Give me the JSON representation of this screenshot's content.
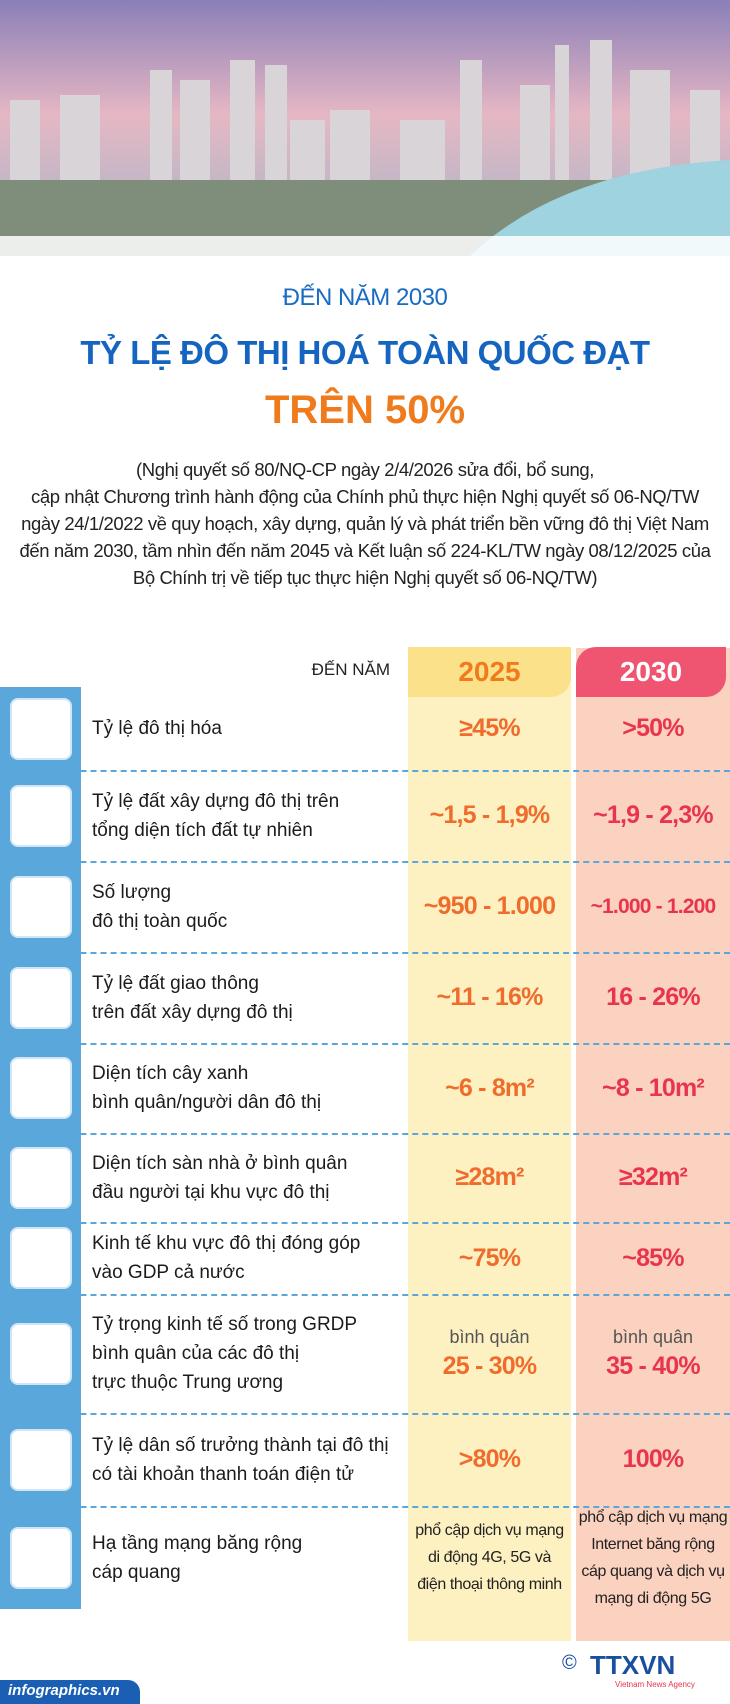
{
  "header": {
    "kicker": "ĐẾN NĂM 2030",
    "title": "TỶ LỆ ĐÔ THỊ HOÁ TOÀN QUỐC ĐẠT",
    "highlight": "TRÊN 50%",
    "note_lines": [
      "(Nghị quyết số 80/NQ-CP ngày 2/4/2026 sửa đổi, bổ sung,",
      "cập nhật Chương trình hành động của Chính phủ thực hiện Nghị quyết số 06-NQ/TW",
      "ngày 24/1/2022 về quy hoạch, xây dựng, quản lý và phát triển bền vững đô thị Việt Nam",
      "đến năm 2030, tầm nhìn đến năm 2045 và Kết luận số 224-KL/TW ngày 08/12/2025 của",
      "Bộ Chính trị về tiếp tục thực hiện Nghị quyết số 06-NQ/TW)"
    ]
  },
  "table": {
    "year_label": "ĐẾN NĂM",
    "columns": [
      "2025",
      "2030"
    ],
    "rows": [
      {
        "label": [
          "Tỷ lệ đô thị hóa"
        ],
        "values": [
          [
            "≥45%"
          ],
          [
            ">50%"
          ]
        ]
      },
      {
        "label": [
          "Tỷ lệ đất xây dựng đô thị trên",
          "tổng diện tích đất tự nhiên"
        ],
        "values": [
          [
            "~1,5 - 1,9%"
          ],
          [
            "~1,9 - 2,3%"
          ]
        ]
      },
      {
        "label": [
          "Số lượng",
          "đô thị toàn quốc"
        ],
        "values": [
          [
            "~950 - 1.000"
          ],
          [
            "~1.000 - 1.200"
          ]
        ]
      },
      {
        "label": [
          "Tỷ lệ đất giao thông",
          "trên đất xây dựng đô thị"
        ],
        "values": [
          [
            "~11 - 16%"
          ],
          [
            "16 - 26%"
          ]
        ]
      },
      {
        "label": [
          "Diện tích cây xanh",
          "bình quân/người dân đô thị"
        ],
        "values": [
          [
            "~6 - 8m²"
          ],
          [
            "~8 - 10m²"
          ]
        ]
      },
      {
        "label": [
          "Diện tích sàn nhà ở bình quân",
          "đầu người tại khu vực đô thị"
        ],
        "values": [
          [
            "≥28m²"
          ],
          [
            "≥32m²"
          ]
        ]
      },
      {
        "label": [
          "Kinh tế khu vực đô thị đóng góp",
          "vào GDP cả nước"
        ],
        "values": [
          [
            "~75%"
          ],
          [
            "~85%"
          ]
        ]
      },
      {
        "label": [
          "Tỷ trọng kinh tế số trong GRDP",
          "bình quân của các đô thị",
          "trực thuộc Trung ương"
        ],
        "values": [
          [
            "bình quân",
            "25 - 30%"
          ],
          [
            "bình quân",
            "35 - 40%"
          ]
        ]
      },
      {
        "label": [
          "Tỷ lệ dân số trưởng thành tại đô thị",
          "có tài khoản thanh toán điện tử"
        ],
        "values": [
          [
            ">80%"
          ],
          [
            "100%"
          ]
        ]
      },
      {
        "label": [
          "Hạ tầng mạng băng rộng",
          "cáp quang"
        ],
        "values": [
          [
            "phổ cập dịch vụ mạng",
            "di động 4G, 5G và",
            "điện thoại thông minh"
          ],
          [
            "phổ cập dịch vụ mạng",
            "Internet băng rộng",
            "cáp quang và dịch vụ",
            "mạng di động 5G"
          ]
        ]
      }
    ]
  },
  "footer": {
    "source": "infographics.vn",
    "copyright": "©",
    "agency": "TTXVN",
    "agency_sub": "Vietnam News Agency"
  }
}
